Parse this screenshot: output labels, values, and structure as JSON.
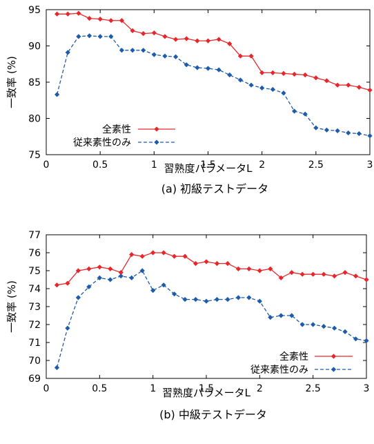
{
  "chart_data": [
    {
      "type": "line",
      "caption": "(a) 初級テストデータ",
      "xlabel": "習熟度パラメータL",
      "ylabel": "一致率 (%)",
      "xlim": [
        0,
        3
      ],
      "ylim": [
        75,
        95
      ],
      "xticks": [
        0,
        0.5,
        1,
        1.5,
        2,
        2.5,
        3
      ],
      "xtick_labels": [
        "0",
        "0.5",
        "1",
        "1.5",
        "2",
        "2.5",
        "3"
      ],
      "yticks": [
        75,
        80,
        85,
        90,
        95
      ],
      "ytick_labels": [
        "75",
        "80",
        "85",
        "90",
        "95"
      ],
      "grid": false,
      "legend_position": "bottom-left",
      "x": [
        0.1,
        0.2,
        0.3,
        0.4,
        0.5,
        0.6,
        0.7,
        0.8,
        0.9,
        1.0,
        1.1,
        1.2,
        1.3,
        1.4,
        1.5,
        1.6,
        1.7,
        1.8,
        1.9,
        2.0,
        2.1,
        2.2,
        2.3,
        2.4,
        2.5,
        2.6,
        2.7,
        2.8,
        2.9,
        3.0
      ],
      "series": [
        {
          "name": "全素性",
          "color": "#e8262a",
          "line_style": "solid",
          "values": [
            94.4,
            94.4,
            94.5,
            93.8,
            93.7,
            93.5,
            93.5,
            92.1,
            91.7,
            91.8,
            91.3,
            90.9,
            91.0,
            90.7,
            90.7,
            90.9,
            90.3,
            88.6,
            88.6,
            86.3,
            86.3,
            86.2,
            86.1,
            86.0,
            85.6,
            85.2,
            84.6,
            84.6,
            84.3,
            83.9
          ]
        },
        {
          "name": "従来素性のみ",
          "color": "#1d5bab",
          "line_style": "dashed",
          "values": [
            83.3,
            89.1,
            91.3,
            91.4,
            91.3,
            91.3,
            89.4,
            89.4,
            89.4,
            88.8,
            88.6,
            88.5,
            87.4,
            87.0,
            86.9,
            86.7,
            86.0,
            85.3,
            84.6,
            84.2,
            84.0,
            83.5,
            81.0,
            80.6,
            78.7,
            78.4,
            78.3,
            78.0,
            77.9,
            77.6
          ]
        }
      ]
    },
    {
      "type": "line",
      "caption": "(b) 中級テストデータ",
      "xlabel": "習熟度パラメータL",
      "ylabel": "一致率 (%)",
      "xlim": [
        0,
        3
      ],
      "ylim": [
        69,
        77
      ],
      "xticks": [
        0,
        0.5,
        1,
        1.5,
        2,
        2.5,
        3
      ],
      "xtick_labels": [
        "0",
        "0.5",
        "1",
        "1.5",
        "2",
        "2.5",
        "3"
      ],
      "yticks": [
        69,
        70,
        71,
        72,
        73,
        74,
        75,
        76,
        77
      ],
      "ytick_labels": [
        "69",
        "70",
        "71",
        "72",
        "73",
        "74",
        "75",
        "76",
        "77"
      ],
      "grid": false,
      "legend_position": "bottom-right",
      "x": [
        0.1,
        0.2,
        0.3,
        0.4,
        0.5,
        0.6,
        0.7,
        0.8,
        0.9,
        1.0,
        1.1,
        1.2,
        1.3,
        1.4,
        1.5,
        1.6,
        1.7,
        1.8,
        1.9,
        2.0,
        2.1,
        2.2,
        2.3,
        2.4,
        2.5,
        2.6,
        2.7,
        2.8,
        2.9,
        3.0
      ],
      "series": [
        {
          "name": "全素性",
          "color": "#e8262a",
          "line_style": "solid",
          "values": [
            74.2,
            74.3,
            75.0,
            75.1,
            75.2,
            75.1,
            74.9,
            75.9,
            75.8,
            76.0,
            76.0,
            75.8,
            75.8,
            75.4,
            75.5,
            75.4,
            75.4,
            75.1,
            75.1,
            75.0,
            75.1,
            74.6,
            74.9,
            74.8,
            74.8,
            74.8,
            74.7,
            74.9,
            74.7,
            74.5
          ]
        },
        {
          "name": "従来素性のみ",
          "color": "#1d5bab",
          "line_style": "dashed",
          "values": [
            69.6,
            71.8,
            73.5,
            74.1,
            74.6,
            74.5,
            74.7,
            74.6,
            75.0,
            73.9,
            74.2,
            73.7,
            73.4,
            73.4,
            73.3,
            73.4,
            73.4,
            73.5,
            73.5,
            73.3,
            72.4,
            72.5,
            72.5,
            72.0,
            72.0,
            71.9,
            71.8,
            71.6,
            71.2,
            71.1
          ]
        }
      ]
    }
  ]
}
